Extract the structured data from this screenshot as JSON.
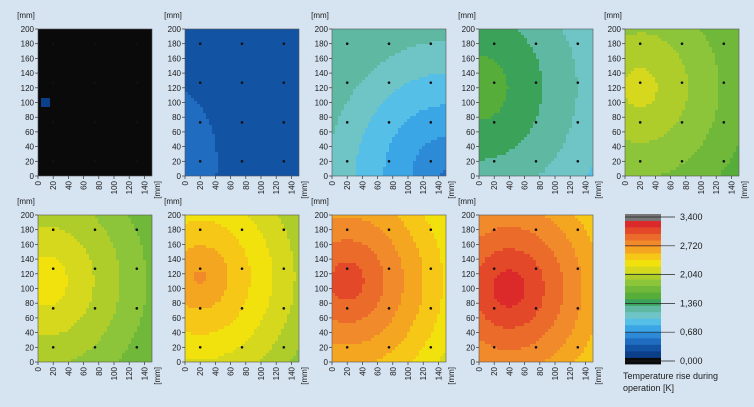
{
  "chart_data": {
    "type": "heatmap",
    "unit_label": "[mm]",
    "x_ticks": [
      "0",
      "20",
      "40",
      "60",
      "80",
      "100",
      "120",
      "140"
    ],
    "y_ticks": [
      "0",
      "20",
      "40",
      "60",
      "80",
      "100",
      "120",
      "140",
      "160",
      "180",
      "200"
    ],
    "xlim": [
      0,
      150
    ],
    "ylim": [
      0,
      200
    ],
    "sensor_points": [
      [
        20,
        20
      ],
      [
        75,
        20
      ],
      [
        130,
        20
      ],
      [
        20,
        73
      ],
      [
        75,
        73
      ],
      [
        130,
        73
      ],
      [
        20,
        127
      ],
      [
        75,
        127
      ],
      [
        130,
        127
      ],
      [
        20,
        180
      ],
      [
        75,
        180
      ],
      [
        130,
        180
      ]
    ],
    "panels": [
      {
        "hot_center": [
          10,
          100
        ],
        "peak_K": 150,
        "edge_K": 80
      },
      {
        "hot_center": [
          -60,
          20
        ],
        "peak_K": 620,
        "edge_K": 300
      },
      {
        "hot_center": [
          150,
          0
        ],
        "peak_K": 560,
        "edge_K": 1300
      },
      {
        "hot_center": [
          0,
          120
        ],
        "peak_K": 1600,
        "edge_K": 1000
      },
      {
        "hot_center": [
          20,
          120
        ],
        "peak_K": 2150,
        "edge_K": 1480
      },
      {
        "hot_center": [
          10,
          110
        ],
        "peak_K": 2340,
        "edge_K": 1550
      },
      {
        "hot_center": [
          20,
          115
        ],
        "peak_K": 2700,
        "edge_K": 1760
      },
      {
        "hot_center": [
          20,
          110
        ],
        "peak_K": 3080,
        "edge_K": 2030
      },
      {
        "hot_center": [
          40,
          100
        ],
        "peak_K": 3230,
        "edge_K": 2130
      }
    ]
  },
  "legend": {
    "title": "Temperature rise during operation [K]",
    "range": [
      0,
      3400
    ],
    "labels": [
      {
        "value": 3400,
        "text": "3,400"
      },
      {
        "value": 2720,
        "text": "2,720"
      },
      {
        "value": 2040,
        "text": "2,040"
      },
      {
        "value": 1360,
        "text": "1,360"
      },
      {
        "value": 680,
        "text": "0,680"
      },
      {
        "value": 0,
        "text": "0,000"
      }
    ],
    "colors": [
      "#0a0a0a",
      "#0b3f8a",
      "#1353a3",
      "#1f6cc0",
      "#2c8ad6",
      "#3aa6e6",
      "#55bfe7",
      "#6fc4c6",
      "#5fb9a2",
      "#3ba25a",
      "#56ad3a",
      "#6fb83a",
      "#8cc43a",
      "#aecd2a",
      "#d6d81d",
      "#f1e20e",
      "#f7c718",
      "#f5a621",
      "#f08a2a",
      "#ea6b2a",
      "#e34829",
      "#dc2a2a",
      "#777777"
    ]
  }
}
